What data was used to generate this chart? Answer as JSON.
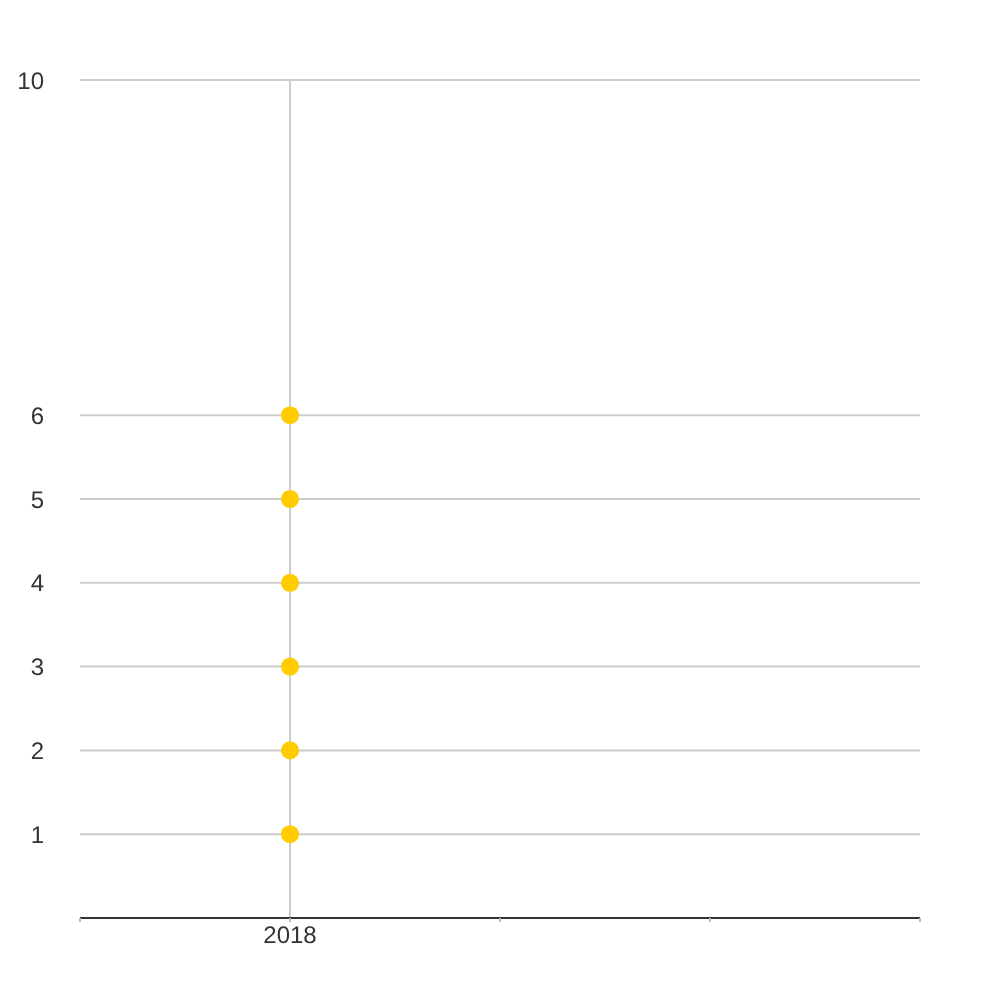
{
  "chart_data": {
    "type": "scatter",
    "categories": [
      "2018",
      null
    ],
    "series": [
      {
        "color": "#ffcc00",
        "values": [
          1,
          null
        ]
      },
      {
        "color": "#ffcc00",
        "values": [
          2,
          null
        ]
      },
      {
        "color": "#ffcc00",
        "values": [
          3,
          null
        ]
      },
      {
        "color": "#ffcc00",
        "values": [
          4,
          null
        ]
      },
      {
        "color": "#ffcc00",
        "values": [
          5,
          null
        ]
      },
      {
        "color": "#ffcc00",
        "values": [
          6,
          null
        ]
      }
    ],
    "ylim": [
      0,
      10
    ],
    "yticks": [
      1,
      2,
      3,
      4,
      5,
      6,
      10
    ],
    "grid": true,
    "marker": "circle"
  }
}
